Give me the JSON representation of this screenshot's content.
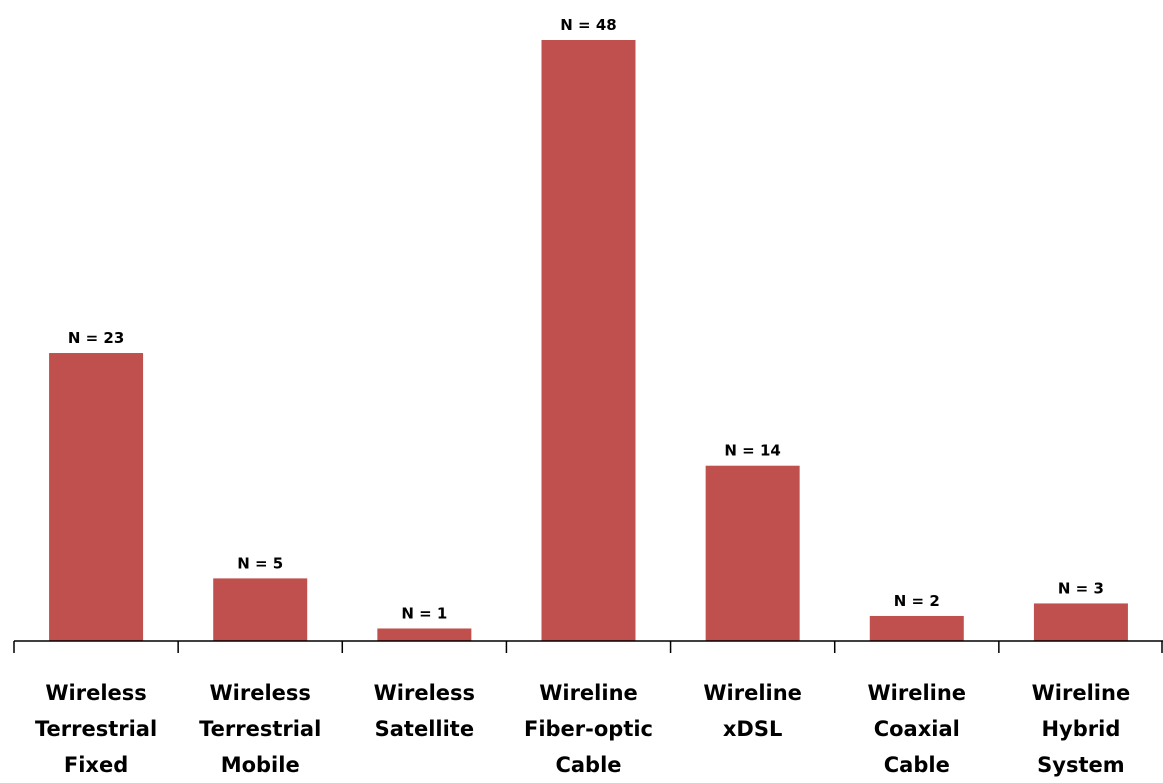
{
  "chart_data": {
    "type": "bar",
    "categories": [
      [
        "Wireless",
        "Terrestrial",
        "Fixed"
      ],
      [
        "Wireless",
        "Terrestrial",
        "Mobile"
      ],
      [
        "Wireless",
        "Satellite"
      ],
      [
        "Wireline",
        "Fiber-optic",
        "Cable"
      ],
      [
        "Wireline",
        "xDSL"
      ],
      [
        "Wireline",
        "Coaxial",
        "Cable"
      ],
      [
        "Wireline",
        "Hybrid",
        "System"
      ]
    ],
    "values": [
      23,
      5,
      1,
      48,
      14,
      2,
      3
    ],
    "data_labels": [
      "N = 23",
      "N = 5",
      "N = 1",
      "N = 48",
      "N = 14",
      "N = 2",
      "N = 3"
    ],
    "ylim": [
      0,
      48
    ],
    "bar_color": "#c0504d",
    "grid": false,
    "legend": "none",
    "y_axis_visible": false
  }
}
